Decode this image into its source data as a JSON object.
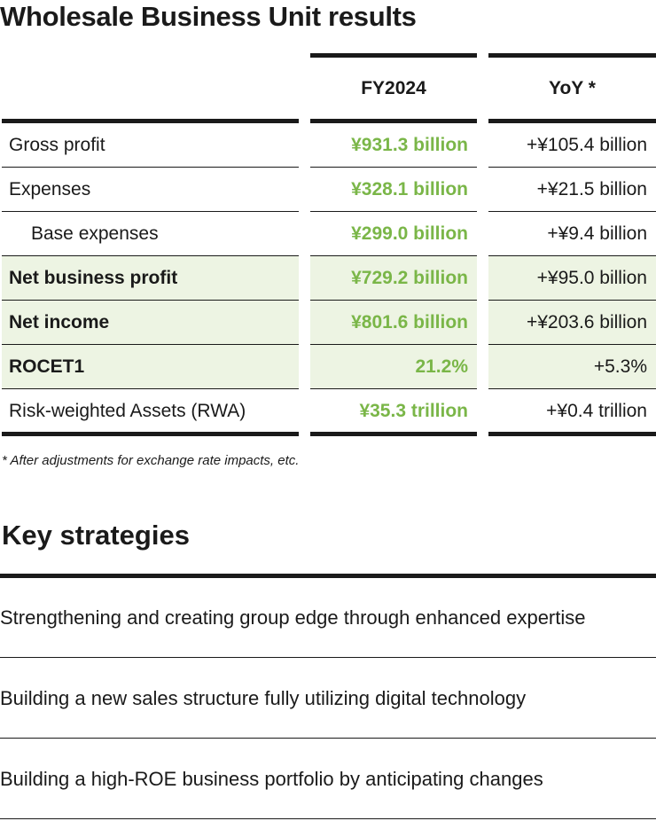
{
  "title": "Wholesale Business Unit results",
  "table": {
    "headers": {
      "fy": "FY2024",
      "yoy": "YoY *"
    },
    "rows": [
      {
        "label": "Gross profit",
        "fy": "¥931.3 billion",
        "yoy": "+¥105.4 billion",
        "highlight": false,
        "bold": false,
        "indent": false
      },
      {
        "label": "Expenses",
        "fy": "¥328.1 billion",
        "yoy": "+¥21.5 billion",
        "highlight": false,
        "bold": false,
        "indent": false
      },
      {
        "label": "Base expenses",
        "fy": "¥299.0 billion",
        "yoy": "+¥9.4 billion",
        "highlight": false,
        "bold": false,
        "indent": true
      },
      {
        "label": "Net business profit",
        "fy": "¥729.2 billion",
        "yoy": "+¥95.0 billion",
        "highlight": true,
        "bold": true,
        "indent": false
      },
      {
        "label": "Net income",
        "fy": "¥801.6 billion",
        "yoy": "+¥203.6 billion",
        "highlight": true,
        "bold": true,
        "indent": false
      },
      {
        "label": "ROCET1",
        "fy": "21.2%",
        "yoy": "+5.3%",
        "highlight": true,
        "bold": true,
        "indent": false
      },
      {
        "label": "Risk-weighted Assets (RWA)",
        "fy": "¥35.3 trillion",
        "yoy": "+¥0.4 trillion",
        "highlight": false,
        "bold": false,
        "indent": false
      }
    ]
  },
  "footnote": "* After adjustments for exchange rate impacts, etc.",
  "strategies_title": "Key strategies",
  "strategies": [
    "Strengthening and creating group edge through enhanced expertise",
    "Building a new sales structure fully utilizing digital technology",
    "Building a high-ROE business portfolio by anticipating changes"
  ],
  "colors": {
    "accent_green": "#7ab648",
    "highlight_bg": "#edf4e3",
    "rule": "#1a1a1a"
  }
}
